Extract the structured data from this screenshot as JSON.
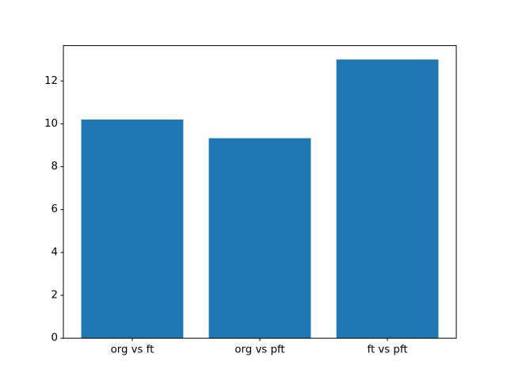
{
  "chart_data": {
    "type": "bar",
    "categories": [
      "org vs ft",
      "org vs pft",
      "ft vs pft"
    ],
    "values": [
      10.2,
      9.33,
      13.0
    ],
    "title": "",
    "xlabel": "",
    "ylabel": "",
    "ylim": [
      0,
      13.65
    ],
    "yticks": [
      0,
      2,
      4,
      6,
      8,
      10,
      12
    ],
    "bar_width": 0.8,
    "bar_color": "#1f77b4",
    "axis_color": "#000000",
    "tick_label_color": "#000000",
    "background_color": "#ffffff",
    "grid": false,
    "legend": null
  }
}
